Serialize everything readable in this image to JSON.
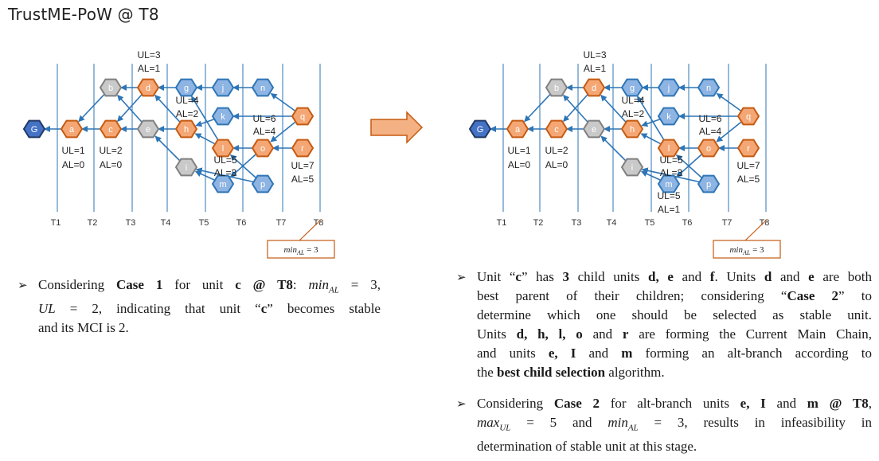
{
  "title": "TrustME-PoW @ T8",
  "colors": {
    "orange_fill": "#f4a774",
    "orange_stroke": "#c55a11",
    "blue_fill": "#8db4e2",
    "blue_stroke": "#2e75b6",
    "gray_fill": "#c9c9c9",
    "gray_stroke": "#7f7f7f",
    "genesis_fill": "#4472c4",
    "genesis_stroke": "#203864",
    "edge": "#2e75b6",
    "timeline": "#2e75b6",
    "callout_border": "#c55a11",
    "arrow_fill": "#f4b183",
    "arrow_stroke": "#c55a11"
  },
  "time_labels": [
    "T1",
    "T2",
    "T3",
    "T4",
    "T5",
    "T6",
    "T7",
    "T8"
  ],
  "min_al_box": {
    "base": "min",
    "subscript": "AL",
    "rest": " = 3"
  },
  "left_diagram": {
    "nodes": [
      {
        "id": "G",
        "label": "G",
        "color": "genesis"
      },
      {
        "id": "a",
        "label": "a",
        "color": "orange"
      },
      {
        "id": "c",
        "label": "c",
        "color": "orange"
      },
      {
        "id": "b",
        "label": "b",
        "color": "gray"
      },
      {
        "id": "d",
        "label": "d",
        "color": "orange"
      },
      {
        "id": "e",
        "label": "e",
        "color": "gray"
      },
      {
        "id": "h",
        "label": "h",
        "color": "orange"
      },
      {
        "id": "g",
        "label": "g",
        "color": "blue"
      },
      {
        "id": "i",
        "label": "i",
        "color": "gray"
      },
      {
        "id": "j",
        "label": "j",
        "color": "blue"
      },
      {
        "id": "k",
        "label": "k",
        "color": "blue"
      },
      {
        "id": "l",
        "label": "l",
        "color": "orange"
      },
      {
        "id": "m",
        "label": "m",
        "color": "blue"
      },
      {
        "id": "n",
        "label": "n",
        "color": "blue"
      },
      {
        "id": "o",
        "label": "o",
        "color": "orange"
      },
      {
        "id": "p",
        "label": "p",
        "color": "blue"
      },
      {
        "id": "q",
        "label": "q",
        "color": "orange"
      },
      {
        "id": "r",
        "label": "r",
        "color": "orange"
      }
    ],
    "labels": [
      {
        "text": "UL=1",
        "anchor": "ul1"
      },
      {
        "text": "AL=0",
        "anchor": "al1"
      },
      {
        "text": "UL=2",
        "anchor": "ul2"
      },
      {
        "text": "AL=0",
        "anchor": "al2"
      },
      {
        "text": "UL=3",
        "anchor": "ul3"
      },
      {
        "text": "AL=1",
        "anchor": "al3"
      },
      {
        "text": "UL=4",
        "anchor": "ul4"
      },
      {
        "text": "AL=2",
        "anchor": "al4"
      },
      {
        "text": "UL=5",
        "anchor": "ul5"
      },
      {
        "text": "AL=3",
        "anchor": "al5"
      },
      {
        "text": "UL=6",
        "anchor": "ul6"
      },
      {
        "text": "AL=4",
        "anchor": "al6"
      },
      {
        "text": "UL=7",
        "anchor": "ul7"
      },
      {
        "text": "AL=5",
        "anchor": "al7"
      }
    ]
  },
  "right_diagram": {
    "nodes": [
      {
        "id": "G",
        "label": "G",
        "color": "genesis"
      },
      {
        "id": "a",
        "label": "a",
        "color": "orange"
      },
      {
        "id": "c",
        "label": "c",
        "color": "orange"
      },
      {
        "id": "b",
        "label": "b",
        "color": "gray"
      },
      {
        "id": "d",
        "label": "d",
        "color": "orange"
      },
      {
        "id": "e",
        "label": "e",
        "color": "gray"
      },
      {
        "id": "h",
        "label": "h",
        "color": "orange"
      },
      {
        "id": "g",
        "label": "g",
        "color": "blue"
      },
      {
        "id": "i",
        "label": "i",
        "color": "gray"
      },
      {
        "id": "j",
        "label": "j",
        "color": "blue"
      },
      {
        "id": "k",
        "label": "k",
        "color": "blue"
      },
      {
        "id": "l",
        "label": "l",
        "color": "orange"
      },
      {
        "id": "m",
        "label": "m",
        "color": "blue"
      },
      {
        "id": "n",
        "label": "n",
        "color": "blue"
      },
      {
        "id": "o",
        "label": "o",
        "color": "orange"
      },
      {
        "id": "p",
        "label": "p",
        "color": "blue"
      },
      {
        "id": "q",
        "label": "q",
        "color": "orange"
      },
      {
        "id": "r",
        "label": "r",
        "color": "orange"
      }
    ],
    "labels": [
      {
        "text": "UL=1",
        "anchor": "ul1"
      },
      {
        "text": "AL=0",
        "anchor": "al1"
      },
      {
        "text": "UL=2",
        "anchor": "ul2"
      },
      {
        "text": "AL=0",
        "anchor": "al2"
      },
      {
        "text": "UL=3",
        "anchor": "ul3"
      },
      {
        "text": "AL=1",
        "anchor": "al3"
      },
      {
        "text": "UL=4",
        "anchor": "ul4"
      },
      {
        "text": "AL=2",
        "anchor": "al4"
      },
      {
        "text": "UL=5",
        "anchor": "ul5"
      },
      {
        "text": "AL=3",
        "anchor": "al5"
      },
      {
        "text": "UL=5",
        "anchor": "ul5b"
      },
      {
        "text": "AL=1",
        "anchor": "al5b"
      },
      {
        "text": "UL=6",
        "anchor": "ul6"
      },
      {
        "text": "AL=4",
        "anchor": "al6"
      },
      {
        "text": "UL=7",
        "anchor": "ul7"
      },
      {
        "text": "AL=5",
        "anchor": "al7"
      }
    ]
  },
  "edges": [
    [
      "a",
      "G"
    ],
    [
      "c",
      "a"
    ],
    [
      "b",
      "a"
    ],
    [
      "d",
      "c"
    ],
    [
      "e",
      "c"
    ],
    [
      "d",
      "b"
    ],
    [
      "e",
      "b"
    ],
    [
      "g",
      "d"
    ],
    [
      "h",
      "e"
    ],
    [
      "h",
      "d"
    ],
    [
      "i",
      "e"
    ],
    [
      "j",
      "g"
    ],
    [
      "k",
      "h"
    ],
    [
      "l",
      "h"
    ],
    [
      "l",
      "g"
    ],
    [
      "m",
      "i"
    ],
    [
      "n",
      "j"
    ],
    [
      "o",
      "l"
    ],
    [
      "p",
      "l"
    ],
    [
      "o",
      "m"
    ],
    [
      "q",
      "n"
    ],
    [
      "q",
      "k"
    ],
    [
      "q",
      "o"
    ],
    [
      "r",
      "o"
    ],
    [
      "p",
      "i"
    ]
  ],
  "left_text": {
    "lines": [
      [
        {
          "t": "Considering "
        },
        {
          "t": "Case 1",
          "b": true
        },
        {
          "t": " for unit "
        },
        {
          "t": "c @ T8",
          "b": true
        },
        {
          "t": ": "
        },
        {
          "t": "min",
          "m": true
        },
        {
          "t": "AL",
          "sub": true
        },
        {
          "t": " = 3,"
        }
      ],
      [
        {
          "t": "UL",
          "m": true
        },
        {
          "t": " = 2, indicating that unit “"
        },
        {
          "t": "c",
          "b": true
        },
        {
          "t": "” becomes stable"
        }
      ],
      [
        {
          "t": "and its MCI is 2."
        }
      ]
    ]
  },
  "right_text_1": {
    "lines": [
      [
        {
          "t": "Unit “"
        },
        {
          "t": "c",
          "b": true
        },
        {
          "t": "” has "
        },
        {
          "t": "3",
          "b": true
        },
        {
          "t": " child units "
        },
        {
          "t": "d, e",
          "b": true
        },
        {
          "t": " and "
        },
        {
          "t": "f",
          "b": true
        },
        {
          "t": ". Units "
        },
        {
          "t": "d",
          "b": true
        },
        {
          "t": " and "
        },
        {
          "t": "e",
          "b": true
        },
        {
          "t": " are both"
        }
      ],
      [
        {
          "t": "best parent of their children; considering “"
        },
        {
          "t": "Case 2",
          "b": true
        },
        {
          "t": "” to"
        }
      ],
      [
        {
          "t": "determine which one should be selected as stable unit."
        }
      ],
      [
        {
          "t": "Units "
        },
        {
          "t": "d, h, l, o",
          "b": true
        },
        {
          "t": " and "
        },
        {
          "t": "r",
          "b": true
        },
        {
          "t": " are forming the Current Main Chain,"
        }
      ],
      [
        {
          "t": "and units "
        },
        {
          "t": "e, I",
          "b": true
        },
        {
          "t": " and "
        },
        {
          "t": "m",
          "b": true
        },
        {
          "t": " forming an alt-branch according to"
        }
      ],
      [
        {
          "t": "the "
        },
        {
          "t": "best child selection",
          "b": true
        },
        {
          "t": " algorithm."
        }
      ]
    ]
  },
  "right_text_2": {
    "lines": [
      [
        {
          "t": "Considering "
        },
        {
          "t": "Case 2",
          "b": true
        },
        {
          "t": " for alt-branch units "
        },
        {
          "t": "e, I",
          "b": true
        },
        {
          "t": " and "
        },
        {
          "t": "m @ T8",
          "b": true
        },
        {
          "t": ","
        }
      ],
      [
        {
          "t": "max",
          "m": true
        },
        {
          "t": "UL",
          "sub": true
        },
        {
          "t": " = 5 and "
        },
        {
          "t": "min",
          "m": true
        },
        {
          "t": "AL",
          "sub": true
        },
        {
          "t": " = 3, results in infeasibility in"
        }
      ],
      [
        {
          "t": "determination of stable unit at this stage."
        }
      ]
    ]
  }
}
